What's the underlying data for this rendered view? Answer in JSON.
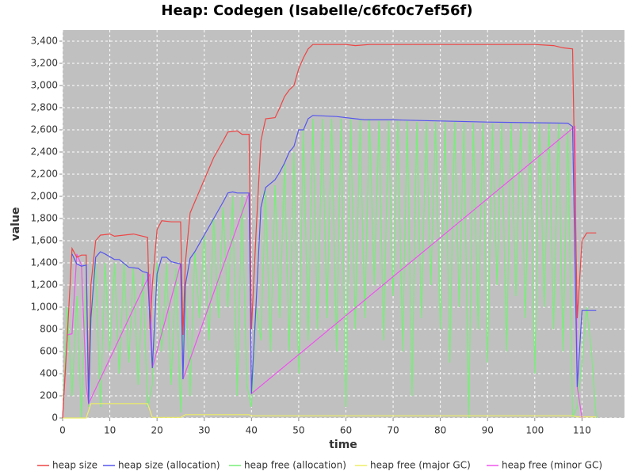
{
  "chart_data": {
    "type": "line",
    "title": "Heap: Codegen (Isabelle/c6fc0c7ef56f)",
    "x_label": "time",
    "y_label": "value",
    "xlim": [
      0,
      119
    ],
    "ylim": [
      0,
      3500
    ],
    "xticks": [
      0,
      10,
      20,
      30,
      40,
      50,
      60,
      70,
      80,
      90,
      100,
      110
    ],
    "yticks": [
      0,
      200,
      400,
      600,
      800,
      {
        "value": 1000,
        "label": "1,000"
      },
      {
        "value": 1200,
        "label": "1,200"
      },
      {
        "value": 1400,
        "label": "1,400"
      },
      {
        "value": 1600,
        "label": "1,600"
      },
      {
        "value": 1800,
        "label": "1,800"
      },
      {
        "value": 2000,
        "label": "2,000"
      },
      {
        "value": 2200,
        "label": "2,200"
      },
      {
        "value": 2400,
        "label": "2,400"
      },
      {
        "value": 2600,
        "label": "2,600"
      },
      {
        "value": 2800,
        "label": "2,800"
      },
      {
        "value": 3000,
        "label": "3,000"
      },
      {
        "value": 3200,
        "label": "3,200"
      },
      {
        "value": 3400,
        "label": "3,400"
      }
    ],
    "grid": true,
    "series": [
      {
        "name": "heap free (allocation)",
        "color": "#77ee77",
        "x": [
          0,
          1,
          2,
          3,
          4,
          5,
          5.5,
          6,
          7,
          8,
          9,
          10,
          11,
          12,
          13,
          14,
          15,
          16,
          17,
          18,
          19,
          20,
          21,
          22,
          23,
          24,
          25,
          26,
          27,
          28,
          29,
          30,
          31,
          32,
          33,
          34,
          35,
          36,
          37,
          38,
          39,
          40,
          41,
          42,
          43,
          44,
          45,
          46,
          47,
          48,
          49,
          50,
          51,
          52,
          53,
          54,
          55,
          56,
          57,
          58,
          59,
          60,
          61,
          62,
          63,
          64,
          65,
          66,
          67,
          68,
          69,
          70,
          71,
          72,
          73,
          74,
          75,
          76,
          77,
          78,
          79,
          80,
          81,
          82,
          83,
          84,
          85,
          86,
          87,
          88,
          89,
          90,
          91,
          92,
          93,
          94,
          95,
          96,
          97,
          98,
          99,
          100,
          101,
          102,
          103,
          104,
          105,
          106,
          107,
          108,
          109,
          110,
          111,
          112,
          113
        ],
        "values": [
          0,
          1000,
          200,
          1100,
          0,
          1200,
          100,
          800,
          1400,
          100,
          1400,
          600,
          1400,
          400,
          1400,
          500,
          1350,
          300,
          1300,
          100,
          300,
          1400,
          600,
          1400,
          300,
          1350,
          50,
          1200,
          200,
          1500,
          900,
          1650,
          700,
          1800,
          900,
          1900,
          1000,
          2000,
          200,
          2000,
          300,
          100,
          1000,
          700,
          2050,
          600,
          2100,
          900,
          2300,
          600,
          2400,
          400,
          2600,
          700,
          2700,
          800,
          2700,
          900,
          2700,
          600,
          2700,
          100,
          2700,
          800,
          2700,
          900,
          2700,
          1200,
          2680,
          700,
          2680,
          1100,
          2680,
          600,
          2680,
          200,
          2670,
          900,
          2670,
          1200,
          2670,
          800,
          2670,
          500,
          2670,
          1000,
          2660,
          0,
          2660,
          800,
          2660,
          500,
          2660,
          1200,
          2660,
          600,
          2660,
          1100,
          2660,
          900,
          2660,
          400,
          2660,
          1000,
          2660,
          800,
          2660,
          600,
          2620,
          10,
          100,
          500,
          1000,
          600,
          0
        ]
      },
      {
        "name": "heap free (major GC)",
        "color": "#eeee66",
        "x": [
          0,
          5,
          6,
          18,
          19,
          25,
          26,
          39.5,
          40,
          108,
          109,
          113
        ],
        "values": [
          0,
          0,
          130,
          130,
          5,
          5,
          30,
          30,
          20,
          20,
          10,
          10
        ]
      },
      {
        "name": "heap free (minor GC)",
        "color": "#ee55ee",
        "x": [
          0,
          1,
          2,
          3,
          4,
          5,
          5.5,
          18.5,
          19,
          25,
          25.5,
          39.5,
          40,
          108.5,
          109,
          110
        ],
        "values": [
          0,
          750,
          760,
          1480,
          1380,
          300,
          130,
          1300,
          450,
          1390,
          350,
          2030,
          220,
          2630,
          280,
          0
        ]
      },
      {
        "name": "heap size",
        "color": "#ee4444",
        "x": [
          0,
          1,
          2,
          3,
          4,
          5,
          5.5,
          6,
          7,
          8,
          10,
          11,
          15,
          17,
          18,
          18.5,
          19,
          20,
          21,
          23,
          25,
          25.5,
          26,
          27,
          28,
          30,
          32,
          34,
          35,
          37,
          38,
          39.5,
          40,
          41,
          42,
          43,
          45,
          46,
          47,
          48,
          49,
          50,
          51,
          52,
          53,
          60,
          62,
          65,
          100,
          104,
          106,
          108,
          109,
          110,
          111,
          113
        ],
        "values": [
          0,
          750,
          1530,
          1450,
          1470,
          1470,
          200,
          1200,
          1600,
          1650,
          1660,
          1640,
          1660,
          1640,
          1630,
          800,
          1200,
          1700,
          1780,
          1770,
          1770,
          750,
          1400,
          1850,
          1950,
          2150,
          2350,
          2500,
          2580,
          2590,
          2560,
          2560,
          800,
          1700,
          2500,
          2700,
          2710,
          2800,
          2900,
          2960,
          3000,
          3150,
          3250,
          3330,
          3370,
          3370,
          3360,
          3370,
          3370,
          3360,
          3340,
          3330,
          900,
          1600,
          1670,
          1670
        ]
      },
      {
        "name": "heap size (allocation)",
        "color": "#5555ee",
        "x": [
          2,
          3,
          4,
          5,
          5.5,
          6,
          7,
          8,
          9,
          11,
          12,
          14,
          16,
          17,
          18,
          19,
          20,
          21,
          22,
          23,
          25,
          25.5,
          26,
          27,
          28,
          30,
          32,
          34,
          35,
          36,
          37,
          39.5,
          40,
          41,
          42,
          43,
          45,
          46,
          47,
          48,
          49,
          50,
          51,
          52,
          53,
          58,
          62,
          64,
          70,
          80,
          90,
          107,
          108,
          109,
          110,
          112,
          113
        ],
        "values": [
          1480,
          1390,
          1370,
          1380,
          130,
          900,
          1450,
          1500,
          1480,
          1430,
          1430,
          1360,
          1350,
          1320,
          1310,
          450,
          1300,
          1450,
          1450,
          1410,
          1390,
          350,
          1200,
          1440,
          1500,
          1650,
          1800,
          1950,
          2030,
          2040,
          2030,
          2030,
          220,
          1050,
          1900,
          2080,
          2150,
          2220,
          2300,
          2400,
          2450,
          2600,
          2600,
          2700,
          2730,
          2720,
          2700,
          2690,
          2690,
          2680,
          2670,
          2660,
          2630,
          280,
          970,
          970,
          970
        ]
      }
    ],
    "legend_order": [
      "heap size",
      "heap size (allocation)",
      "heap free (allocation)",
      "heap free (major GC)",
      "heap free (minor GC)"
    ]
  }
}
